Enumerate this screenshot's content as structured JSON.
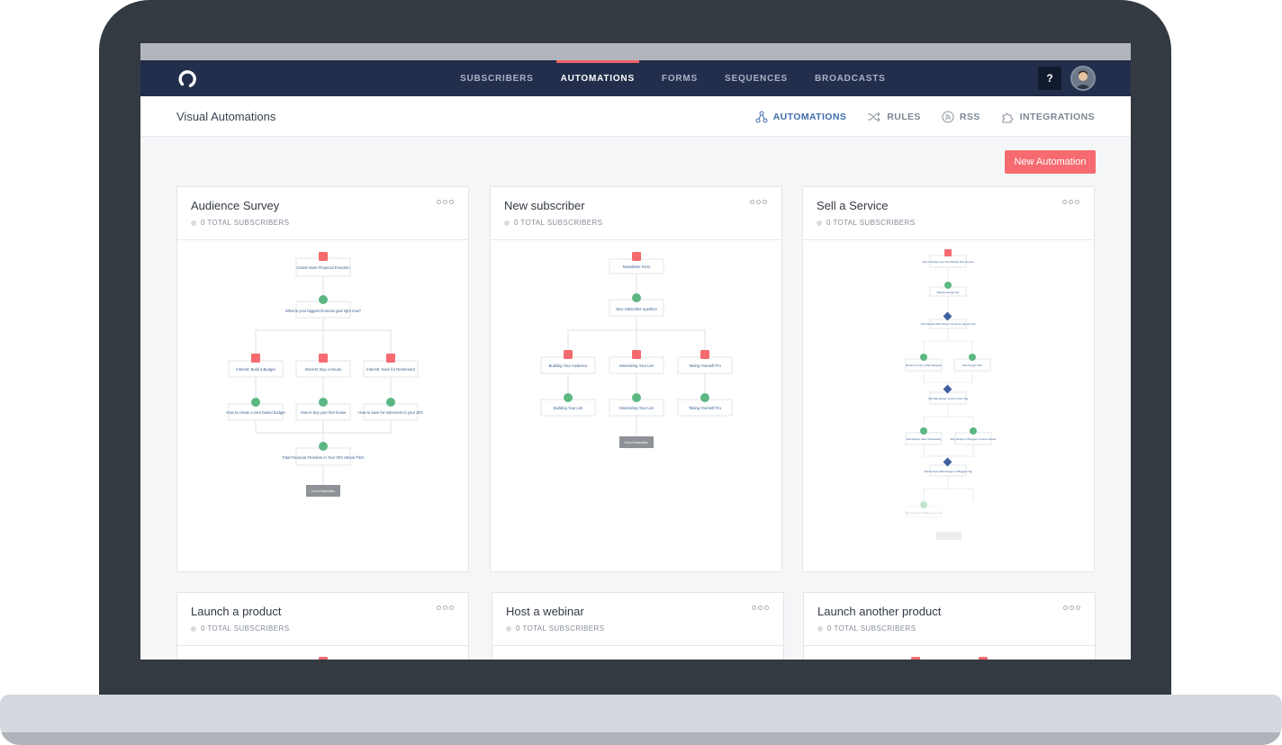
{
  "nav": {
    "items": [
      "SUBSCRIBERS",
      "AUTOMATIONS",
      "FORMS",
      "SEQUENCES",
      "BROADCASTS"
    ],
    "active": "AUTOMATIONS",
    "help": "?"
  },
  "subheader": {
    "title": "Visual Automations",
    "tabs": [
      {
        "label": "AUTOMATIONS",
        "icon": "automations-icon"
      },
      {
        "label": "RULES",
        "icon": "shuffle-icon"
      },
      {
        "label": "RSS",
        "icon": "rss-icon"
      },
      {
        "label": "INTEGRATIONS",
        "icon": "puzzle-icon"
      }
    ]
  },
  "new_automation": "New Automation",
  "cards": [
    {
      "title": "Audience Survey",
      "subtitle": "0 TOTAL SUBSCRIBERS",
      "flow": {
        "trigger": "Create More Financial Freedom",
        "question": "What is your biggest financial goal right now?",
        "branches": [
          "Interest: Build a Budget",
          "Interest: Buy a House",
          "Interest: Save for Retirement"
        ],
        "sequences": [
          "How to create a zero based budget",
          "How to buy your first house",
          "How to save for retirement in your 30's"
        ],
        "final": "Total Financial Freedom in Your 30's eBook Pitch",
        "end": "End of Automation"
      }
    },
    {
      "title": "New subscriber",
      "subtitle": "0 TOTAL SUBSCRIBERS",
      "flow": {
        "trigger": "Newsletter Form",
        "question": "New subscriber question",
        "branches": [
          "Building Your Audience",
          "Monetizing Your List",
          "Taking Yourself Pro"
        ],
        "sequences": [
          "Building Your List",
          "Monetizing Your List",
          "Taking Yourself Pro"
        ],
        "end": "End of Automation"
      }
    },
    {
      "title": "Sell a Service",
      "subtitle": "0 TOTAL SUBSCRIBERS",
      "flow": {
        "trigger": "How to Design your first Website Free Course",
        "email": "Website Design 101",
        "condition_1": "Sell Ultimate Web Design Course for Agency Tag",
        "split_1": [
          "Would You Like a Web Designer",
          "Web Design Pitch"
        ],
        "condition_2": "Sell Web Design Service Client Tag",
        "split_2": [
          "Web Design Client Onboarding",
          "Web Design for Bloggers Course Interest"
        ],
        "condition_3": "Sell Premium Web Design for Bloggers Tag",
        "faded": "Web Design for Bloggers Course"
      }
    },
    {
      "title": "Launch a product",
      "subtitle": "0 TOTAL SUBSCRIBERS"
    },
    {
      "title": "Host a webinar",
      "subtitle": "0 TOTAL SUBSCRIBERS"
    },
    {
      "title": "Launch another product",
      "subtitle": "0 TOTAL SUBSCRIBERS"
    }
  ]
}
